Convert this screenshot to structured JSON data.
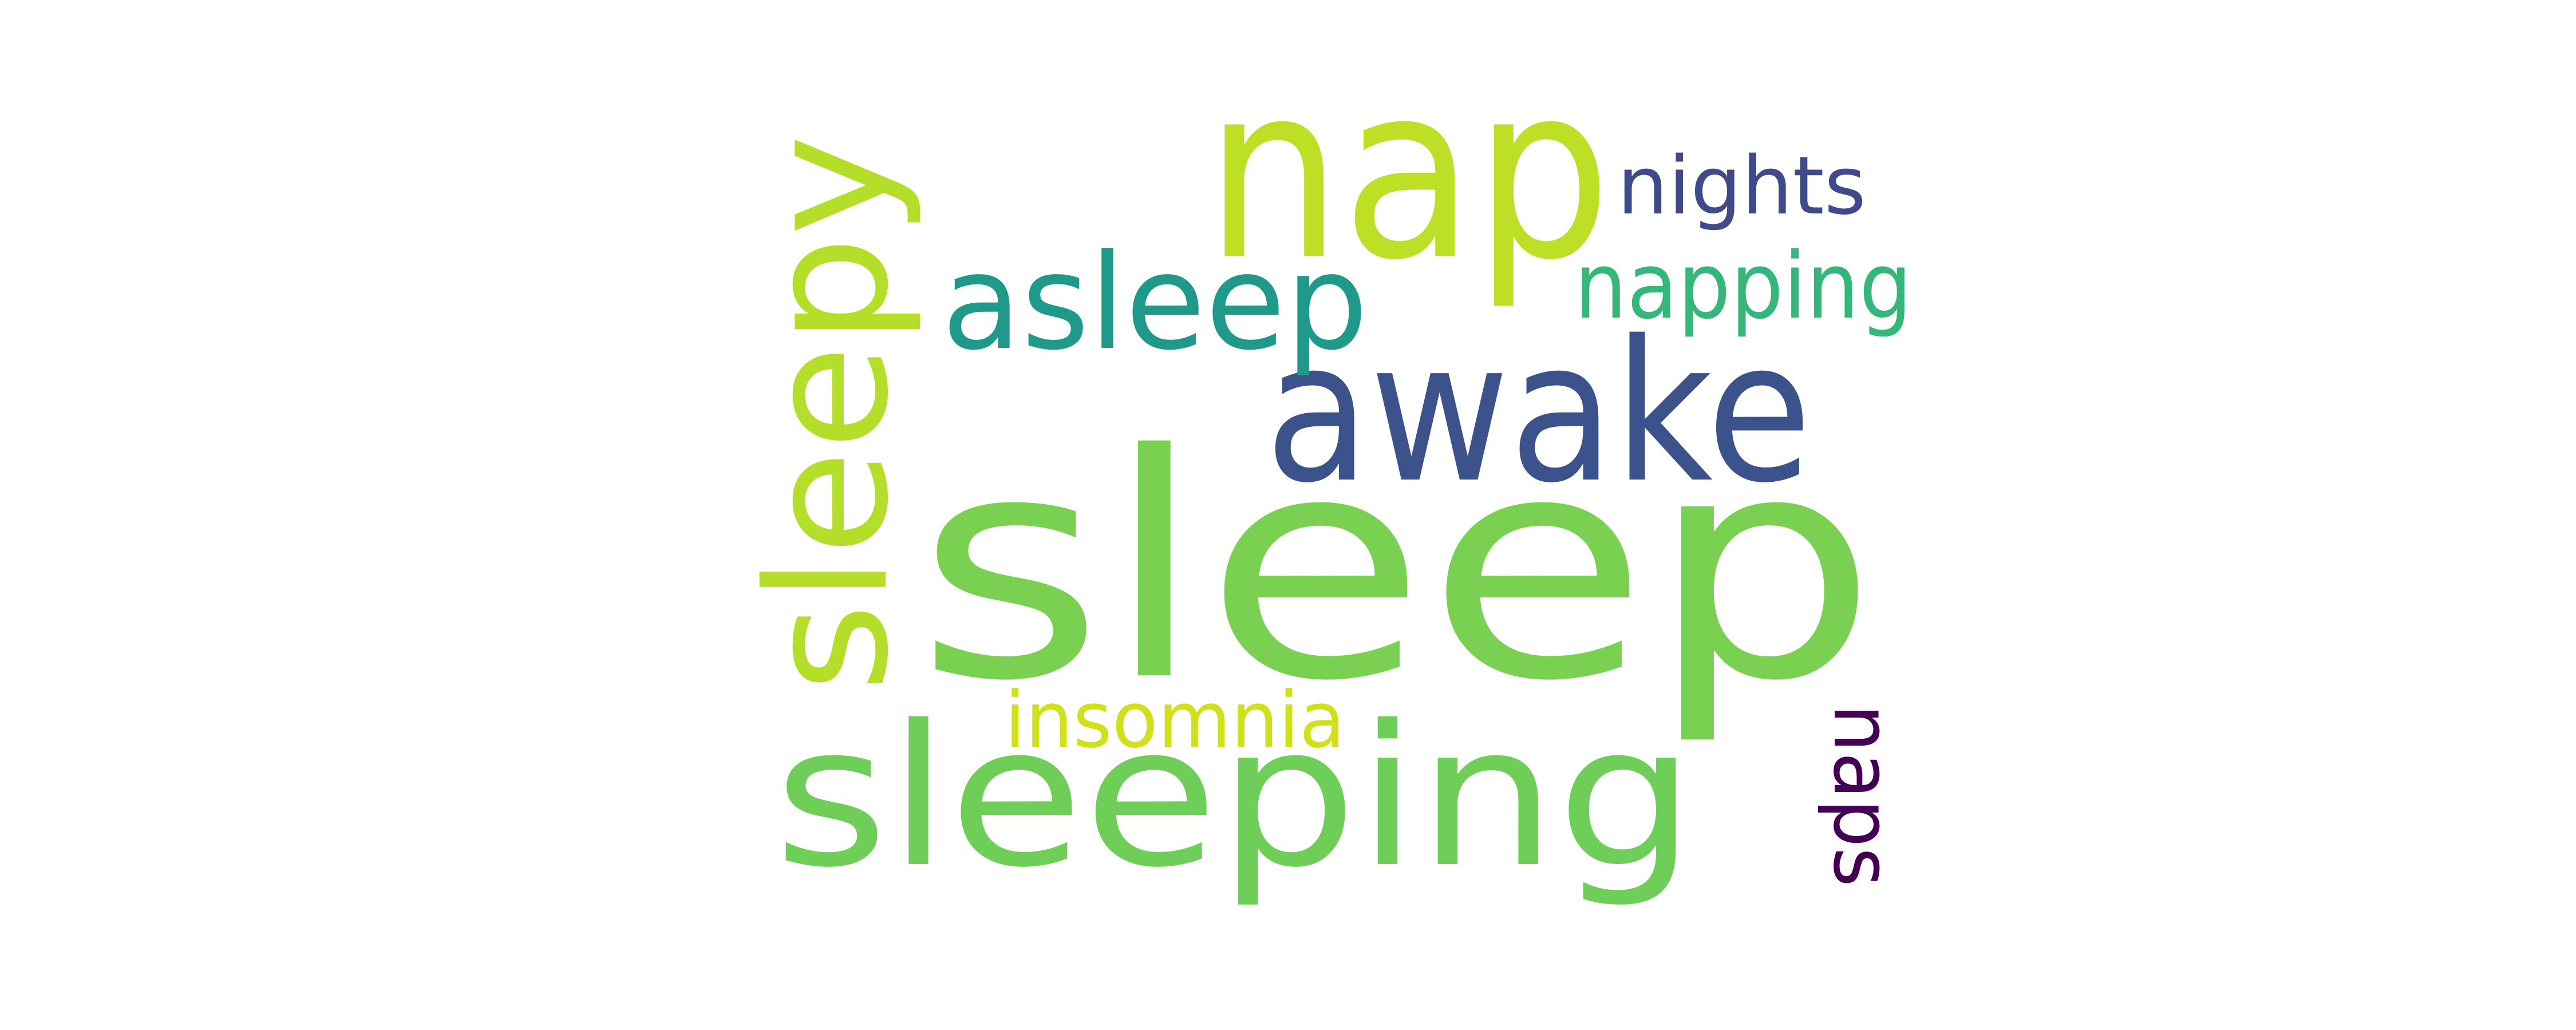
{
  "words": [
    {
      "text": "sleep",
      "color": "#7ad151"
    },
    {
      "text": "sleeping",
      "color": "#6ece58"
    },
    {
      "text": "nap",
      "color": "#bddf26"
    },
    {
      "text": "sleepy",
      "color": "#b5de2b"
    },
    {
      "text": "awake",
      "color": "#3b528b"
    },
    {
      "text": "asleep",
      "color": "#1f9a8a"
    },
    {
      "text": "napping",
      "color": "#35b779"
    },
    {
      "text": "nights",
      "color": "#3e4a89"
    },
    {
      "text": "insomnia",
      "color": "#d0e11c"
    },
    {
      "text": "naps",
      "color": "#440154"
    }
  ]
}
